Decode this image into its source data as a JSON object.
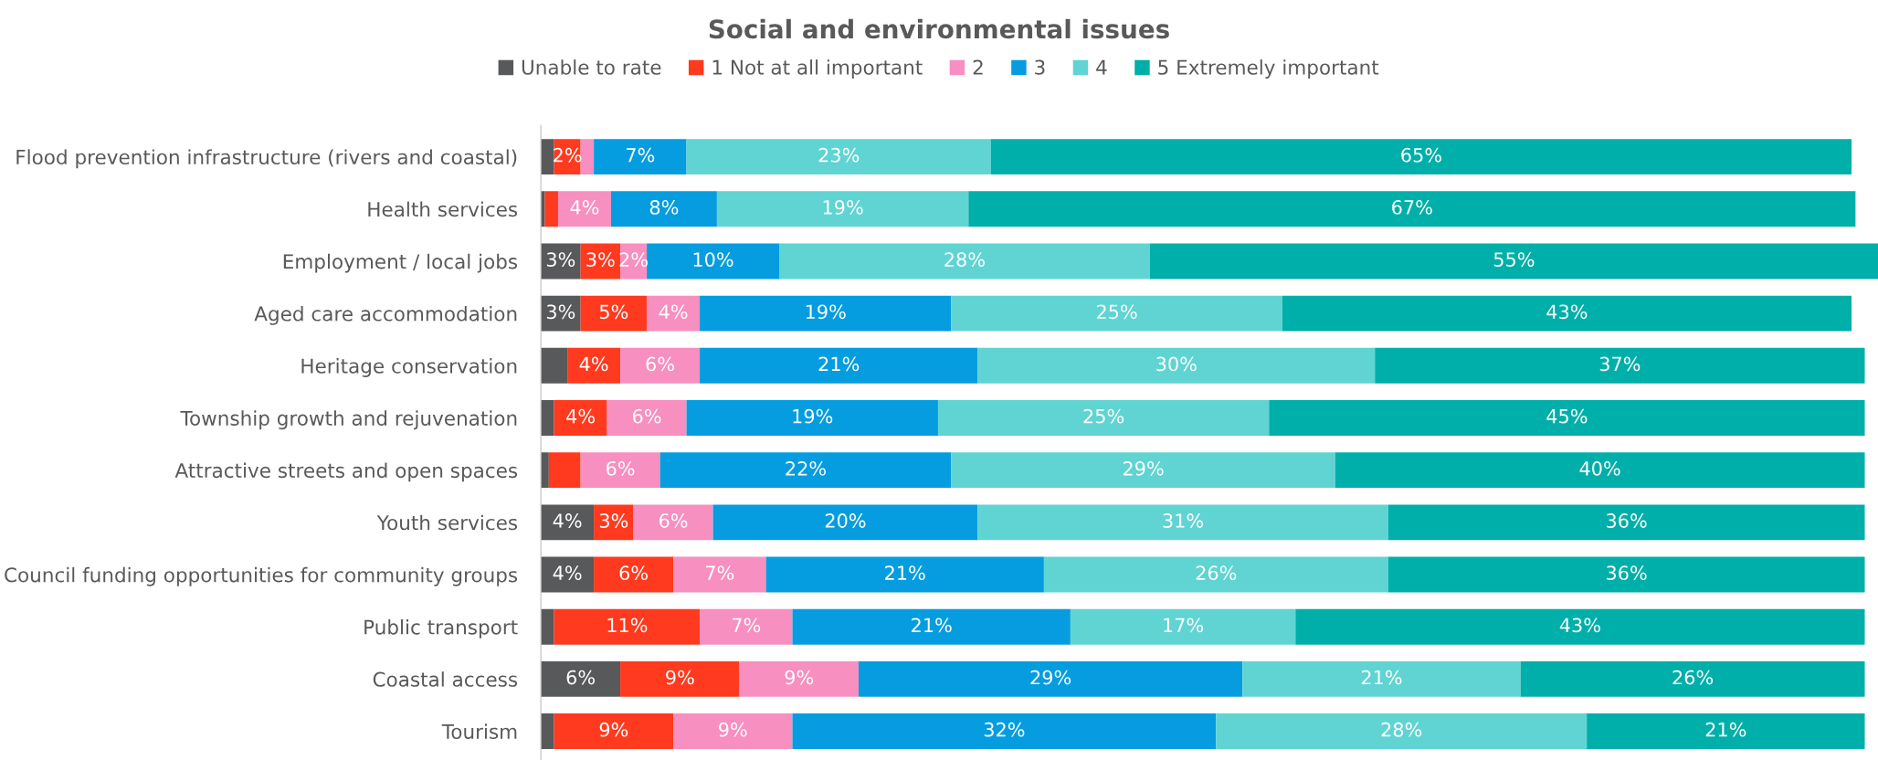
{
  "chart_data": {
    "type": "bar",
    "orientation": "horizontal",
    "stacked": true,
    "title": "Social and environmental issues",
    "categories": [
      "Flood prevention infrastructure (rivers and coastal)",
      "Health services",
      "Employment / local jobs",
      "Aged care accommodation",
      "Heritage conservation",
      "Township growth and rejuvenation",
      "Attractive streets and open spaces",
      "Youth services",
      "Council funding opportunities for community groups",
      "Public transport",
      "Coastal access",
      "Tourism"
    ],
    "series": [
      {
        "name": "Unable to rate",
        "color": "#58595b",
        "values": [
          1,
          0.3,
          3,
          3,
          2,
          1,
          0.6,
          4,
          4,
          1,
          6,
          1
        ],
        "value_labels": [
          null,
          null,
          "3%",
          "3%",
          null,
          null,
          null,
          "4%",
          "4%",
          null,
          "6%",
          null
        ]
      },
      {
        "name": "1 Not at all important",
        "color": "#ff3a1e",
        "values": [
          2,
          1,
          3,
          5,
          4,
          4,
          2.4,
          3,
          6,
          11,
          9,
          9
        ],
        "value_labels": [
          "2%",
          null,
          "3%",
          "5%",
          "4%",
          "4%",
          null,
          "3%",
          "6%",
          "11%",
          "9%",
          "9%"
        ]
      },
      {
        "name": "2",
        "color": "#f78fc0",
        "values": [
          1,
          4,
          2,
          4,
          6,
          6,
          6,
          6,
          7,
          7,
          9,
          9
        ],
        "value_labels": [
          null,
          "4%",
          "2%",
          "4%",
          "6%",
          "6%",
          "6%",
          "6%",
          "7%",
          "7%",
          "9%",
          "9%"
        ]
      },
      {
        "name": "3",
        "color": "#059ddf",
        "values": [
          7,
          8,
          10,
          19,
          21,
          19,
          22,
          20,
          21,
          21,
          29,
          32
        ],
        "value_labels": [
          "7%",
          "8%",
          "10%",
          "19%",
          "21%",
          "19%",
          "22%",
          "20%",
          "21%",
          "21%",
          "29%",
          "32%"
        ]
      },
      {
        "name": "4",
        "color": "#5fd4d3",
        "values": [
          23,
          19,
          28,
          25,
          30,
          25,
          29,
          31,
          26,
          17,
          21,
          28
        ],
        "value_labels": [
          "23%",
          "19%",
          "28%",
          "25%",
          "30%",
          "25%",
          "29%",
          "31%",
          "26%",
          "17%",
          "21%",
          "28%"
        ]
      },
      {
        "name": "5 Extremely important",
        "color": "#00afa9",
        "values": [
          65,
          67,
          55,
          43,
          37,
          45,
          40,
          36,
          36,
          43,
          26,
          21
        ],
        "value_labels": [
          "65%",
          "67%",
          "55%",
          "43%",
          "37%",
          "45%",
          "40%",
          "36%",
          "36%",
          "43%",
          "26%",
          "21%"
        ]
      }
    ],
    "legend": "top",
    "grid": false
  }
}
